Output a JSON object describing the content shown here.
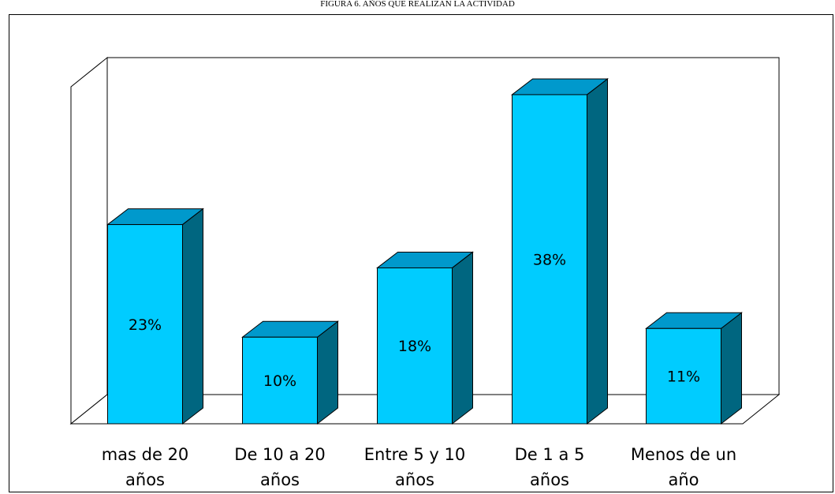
{
  "chart_data": {
    "type": "bar",
    "title": "FIGURA 6. AÑOS QUE REALIZAN LA ACTIVIDAD",
    "categories": [
      [
        "mas de 20",
        "años"
      ],
      [
        "De 10 a 20",
        "años"
      ],
      [
        "Entre 5 y 10",
        "años"
      ],
      [
        "De 1 a 5",
        "años"
      ],
      [
        "Menos de un",
        "año"
      ]
    ],
    "values": [
      23,
      10,
      18,
      38,
      11
    ],
    "data_labels": [
      "23%",
      "10%",
      "18%",
      "38%",
      "11%"
    ],
    "ylim": [
      0,
      40
    ],
    "grid": false,
    "legend": "none",
    "three_d": true,
    "colors": {
      "front": "#00CCFF",
      "top": "#0099CC",
      "side": "#006680",
      "stroke": "#000000"
    }
  }
}
